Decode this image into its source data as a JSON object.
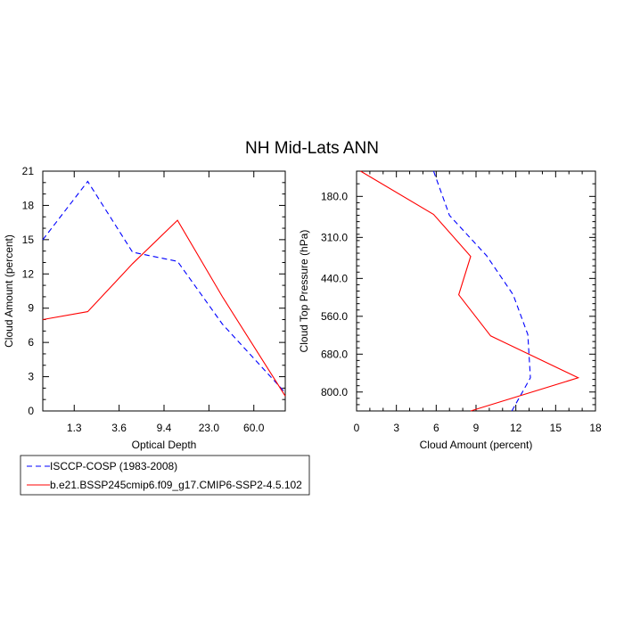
{
  "title": "NH Mid-Lats ANN",
  "legend": {
    "items": [
      {
        "label": "ISCCP-COSP (1983-2008)",
        "color": "#0000ff",
        "dash": true
      },
      {
        "label": "b.e21.BSSP245cmip6.f09_g17.CMIP6-SSP2-4.5.102",
        "color": "#ff0000",
        "dash": false
      }
    ]
  },
  "chart_data": [
    {
      "type": "line",
      "xlabel": "Optical Depth",
      "ylabel": "Cloud Amount (percent)",
      "x_tick_labels": [
        "1.3",
        "3.6",
        "9.4",
        "23.0",
        "60.0"
      ],
      "x_tick_positions": [
        1,
        2,
        3,
        4,
        5
      ],
      "xlim": [
        0.3,
        5.7
      ],
      "ylim": [
        0,
        21
      ],
      "y_ticks": [
        0,
        3,
        6,
        9,
        12,
        15,
        18,
        21
      ],
      "series": [
        {
          "name": "ISCCP-COSP (1983-2008)",
          "color": "#0000ff",
          "dash": true,
          "x": [
            0.3,
            1.3,
            2.3,
            3.3,
            4.3,
            5.7
          ],
          "y": [
            15.0,
            20.1,
            13.9,
            13.1,
            7.6,
            1.6
          ]
        },
        {
          "name": "b.e21.BSSP245cmip6.f09_g17.CMIP6-SSP2-4.5.102",
          "color": "#ff0000",
          "dash": false,
          "x": [
            0.3,
            1.3,
            2.3,
            3.3,
            4.3,
            5.7
          ],
          "y": [
            8.0,
            8.7,
            12.9,
            16.7,
            10.0,
            1.3
          ]
        }
      ]
    },
    {
      "type": "line",
      "xlabel": "Cloud Amount (percent)",
      "ylabel": "Cloud Top Pressure (hPa)",
      "xlim": [
        0,
        18
      ],
      "x_ticks": [
        0,
        3,
        6,
        9,
        12,
        15,
        18
      ],
      "ylim": [
        860,
        100
      ],
      "y_tick_labels": [
        "180.0",
        "310.0",
        "440.0",
        "560.0",
        "680.0",
        "800.0"
      ],
      "y_ticks": [
        180,
        310,
        440,
        560,
        680,
        800
      ],
      "series": [
        {
          "name": "ISCCP-COSP (1983-2008)",
          "color": "#0000ff",
          "dash": true,
          "x": [
            5.8,
            7.0,
            9.8,
            11.8,
            12.9,
            13.1,
            11.7
          ],
          "y": [
            100,
            240,
            368,
            492,
            618,
            755,
            860
          ]
        },
        {
          "name": "b.e21.BSSP245cmip6.f09_g17.CMIP6-SSP2-4.5.102",
          "color": "#ff0000",
          "dash": false,
          "x": [
            0.3,
            5.8,
            8.6,
            7.7,
            10.1,
            16.7,
            8.6
          ],
          "y": [
            100,
            237,
            370,
            492,
            622,
            755,
            860
          ]
        }
      ]
    }
  ]
}
